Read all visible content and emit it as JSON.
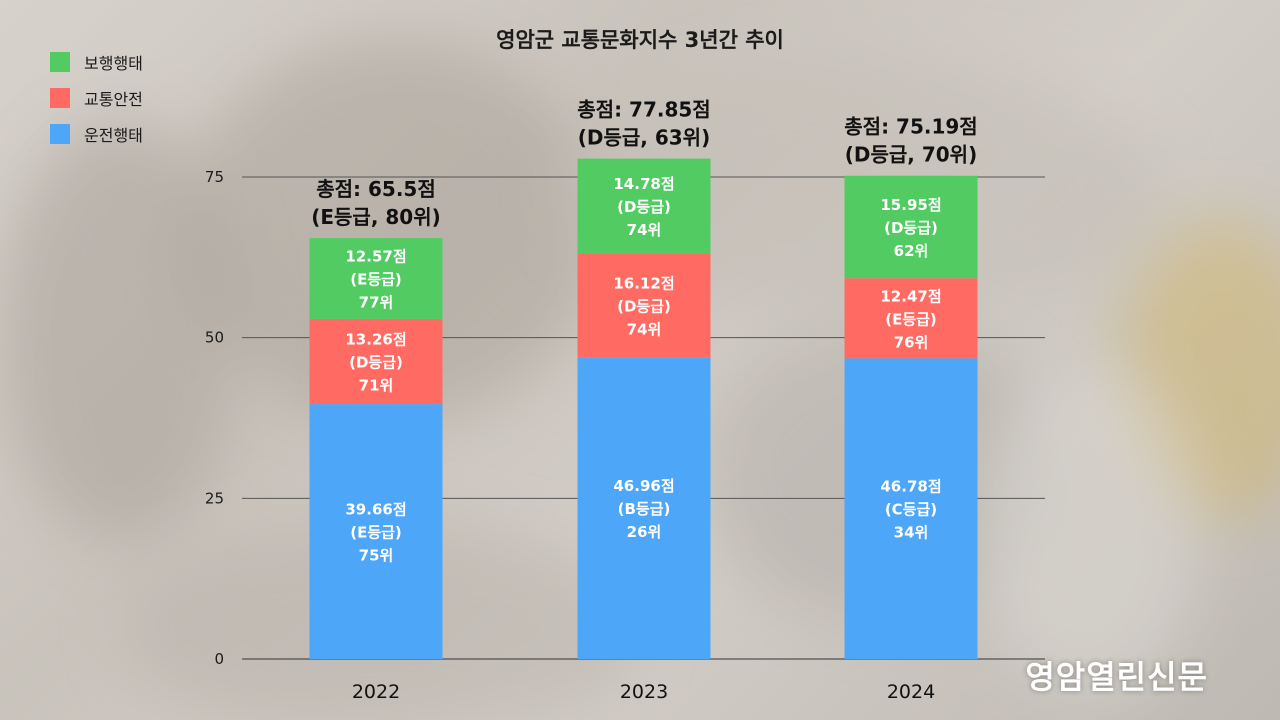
{
  "chart_data": {
    "type": "bar",
    "stacked": true,
    "title": "영암군 교통문화지수 3년간 추이",
    "categories": [
      "2022",
      "2023",
      "2024"
    ],
    "ylim": [
      0,
      75
    ],
    "yticks": [
      0,
      25,
      50,
      75
    ],
    "grid": true,
    "legend_position": "top-left",
    "series": [
      {
        "name": "운전행태",
        "color": "#4da6f7",
        "values": [
          39.66,
          46.96,
          46.78
        ],
        "labels": [
          [
            "39.66점",
            "(E등급)",
            "75위"
          ],
          [
            "46.96점",
            "(B등급)",
            "26위"
          ],
          [
            "46.78점",
            "(C등급)",
            "34위"
          ]
        ]
      },
      {
        "name": "교통안전",
        "color": "#ff6b63",
        "values": [
          13.26,
          16.12,
          12.47
        ],
        "labels": [
          [
            "13.26점",
            "(D등급)",
            "71위"
          ],
          [
            "16.12점",
            "(D등급)",
            "74위"
          ],
          [
            "12.47점",
            "(E등급)",
            "76위"
          ]
        ]
      },
      {
        "name": "보행행태",
        "color": "#52cc62",
        "values": [
          12.57,
          14.78,
          15.95
        ],
        "labels": [
          [
            "12.57점",
            "(E등급)",
            "77위"
          ],
          [
            "14.78점",
            "(D등급)",
            "74위"
          ],
          [
            "15.95점",
            "(D등급)",
            "62위"
          ]
        ]
      }
    ],
    "totals": [
      {
        "value": 65.5,
        "lines": [
          "총점: 65.5점",
          "(E등급, 80위)"
        ]
      },
      {
        "value": 77.85,
        "lines": [
          "총점: 77.85점",
          "(D등급, 63위)"
        ]
      },
      {
        "value": 75.19,
        "lines": [
          "총점: 75.19점",
          "(D등급, 70위)"
        ]
      }
    ]
  },
  "legend": [
    {
      "label": "보행행태",
      "color": "#52cc62"
    },
    {
      "label": "교통안전",
      "color": "#ff6b63"
    },
    {
      "label": "운전행태",
      "color": "#4da6f7"
    }
  ],
  "watermark": "영암열린신문"
}
